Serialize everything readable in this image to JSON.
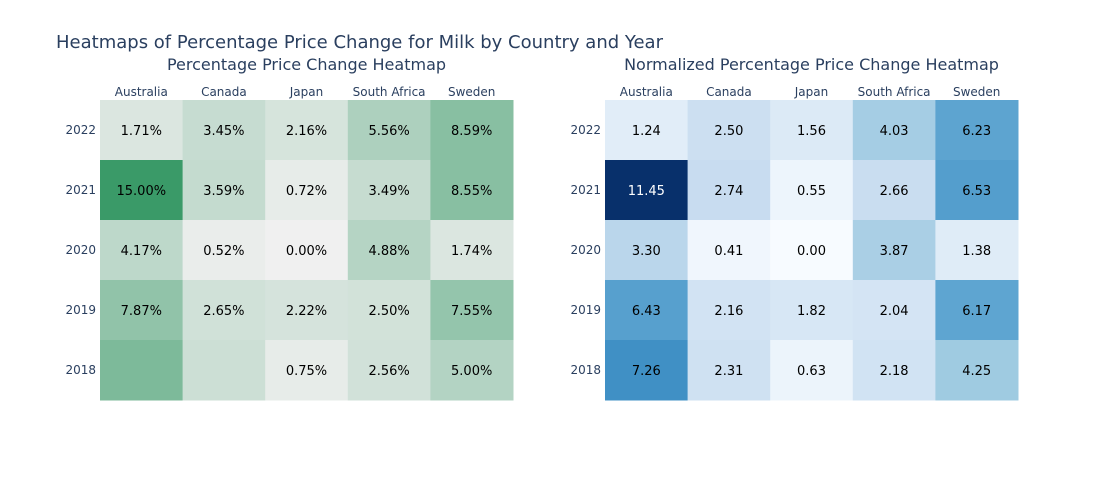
{
  "title": "Heatmaps of Percentage Price Change for Milk by Country and Year",
  "chart_data": [
    {
      "type": "heatmap",
      "title": "Percentage Price Change Heatmap",
      "x": [
        "Australia",
        "Canada",
        "Japan",
        "South Africa",
        "Sweden"
      ],
      "y": [
        "2022",
        "2021",
        "2020",
        "2019",
        "2018"
      ],
      "z": [
        [
          1.71,
          3.45,
          2.16,
          5.56,
          8.59
        ],
        [
          15.0,
          3.59,
          0.72,
          3.49,
          8.55
        ],
        [
          4.17,
          0.52,
          0.0,
          4.88,
          1.74
        ],
        [
          7.87,
          2.65,
          2.22,
          2.5,
          7.55
        ],
        [
          9.5,
          3.0,
          0.75,
          2.56,
          5.0
        ]
      ],
      "text": [
        [
          "1.71%",
          "3.45%",
          "2.16%",
          "5.56%",
          "8.59%"
        ],
        [
          "15.00%",
          "3.59%",
          "0.72%",
          "3.49%",
          "8.55%"
        ],
        [
          "4.17%",
          "0.52%",
          "0.00%",
          "4.88%",
          "1.74%"
        ],
        [
          "7.87%",
          "2.65%",
          "2.22%",
          "2.50%",
          "7.55%"
        ],
        [
          "",
          "",
          "0.75%",
          "2.56%",
          "5.00%"
        ]
      ],
      "zmin": 0,
      "zmax": 15,
      "colorscale": [
        "#f0f0f0",
        "#3a9a68"
      ]
    },
    {
      "type": "heatmap",
      "title": "Normalized Percentage Price Change Heatmap",
      "x": [
        "Australia",
        "Canada",
        "Japan",
        "South Africa",
        "Sweden"
      ],
      "y": [
        "2022",
        "2021",
        "2020",
        "2019",
        "2018"
      ],
      "z": [
        [
          1.24,
          2.5,
          1.56,
          4.03,
          6.23
        ],
        [
          11.45,
          2.74,
          0.55,
          2.66,
          6.53
        ],
        [
          3.3,
          0.41,
          0.0,
          3.87,
          1.38
        ],
        [
          6.43,
          2.16,
          1.82,
          2.04,
          6.17
        ],
        [
          7.26,
          2.31,
          0.63,
          2.18,
          4.25
        ]
      ],
      "text": [
        [
          "1.24",
          "2.50",
          "1.56",
          "4.03",
          "6.23"
        ],
        [
          "11.45",
          "2.74",
          "0.55",
          "2.66",
          "6.53"
        ],
        [
          "3.30",
          "0.41",
          "0.00",
          "3.87",
          "1.38"
        ],
        [
          "6.43",
          "2.16",
          "1.82",
          "2.04",
          "6.17"
        ],
        [
          "7.26",
          "2.31",
          "0.63",
          "2.18",
          "4.25"
        ]
      ],
      "zmin": 0,
      "zmax": 11.45,
      "colorscale": "Blues"
    }
  ]
}
